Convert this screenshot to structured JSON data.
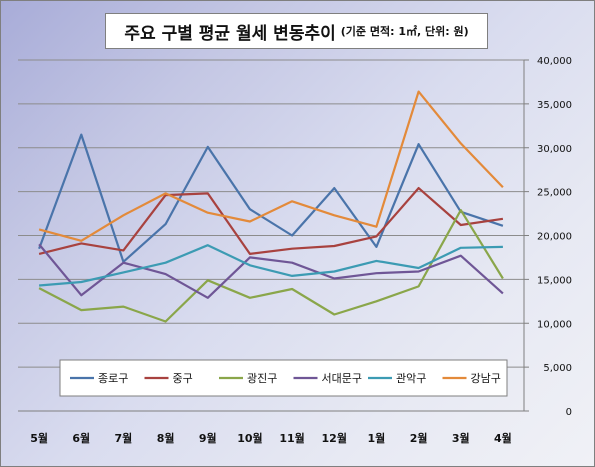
{
  "chart_data": {
    "type": "line",
    "title": "주요 구별 평균 월세 변동추이",
    "subtitle": "(기준 면적: 1㎡, 단위: 원)",
    "categories": [
      "5월",
      "6월",
      "7월",
      "8월",
      "9월",
      "10월",
      "11월",
      "12월",
      "1월",
      "2월",
      "3월",
      "4월"
    ],
    "ylim": [
      0,
      40000
    ],
    "yticks": [
      "0",
      "5,000",
      "10,000",
      "15,000",
      "20,000",
      "25,000",
      "30,000",
      "35,000",
      "40,000"
    ],
    "grid": true,
    "legend_position": "bottom-inside",
    "series": [
      {
        "name": "종로구",
        "color": "#4a74aa",
        "values": [
          18500,
          31500,
          17000,
          21300,
          30100,
          23000,
          20000,
          25400,
          18700,
          30400,
          22700,
          21100
        ]
      },
      {
        "name": "중구",
        "color": "#a8423f",
        "values": [
          17900,
          19100,
          18300,
          24600,
          24800,
          17900,
          18500,
          18800,
          19900,
          25400,
          21200,
          21900
        ]
      },
      {
        "name": "광진구",
        "color": "#8aa64a",
        "values": [
          14000,
          11500,
          11900,
          10200,
          14900,
          12900,
          13900,
          11000,
          12500,
          14200,
          22900,
          15100
        ]
      },
      {
        "name": "서대문구",
        "color": "#6f5696",
        "values": [
          19000,
          13200,
          16900,
          15600,
          12900,
          17500,
          16900,
          15100,
          15700,
          15900,
          17700,
          13400
        ]
      },
      {
        "name": "관악구",
        "color": "#3c9bb3",
        "values": [
          14300,
          14700,
          15800,
          16900,
          18900,
          16600,
          15400,
          15900,
          17100,
          16300,
          18600,
          18700
        ]
      },
      {
        "name": "강남구",
        "color": "#e38a3a",
        "values": [
          20700,
          19400,
          22300,
          24800,
          22600,
          21600,
          23900,
          22300,
          21000,
          36400,
          30500,
          25500
        ]
      }
    ]
  }
}
